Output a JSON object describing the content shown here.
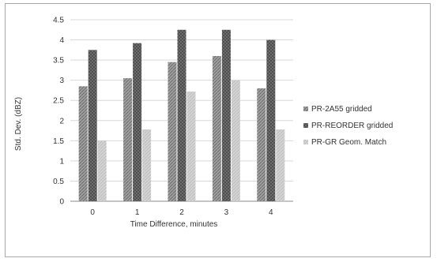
{
  "chart_data": {
    "type": "bar",
    "title": "",
    "xlabel": "Time Difference, minutes",
    "ylabel": "Std. Dev. (dBZ)",
    "categories": [
      "0",
      "1",
      "2",
      "3",
      "4"
    ],
    "ylim": [
      0,
      4.5
    ],
    "yticks": [
      "0",
      "0.5",
      "1",
      "1.5",
      "2",
      "2.5",
      "3",
      "3.5",
      "4",
      "4.5"
    ],
    "grid": true,
    "legend_position": "right",
    "series": [
      {
        "name": "PR-2A55 gridded",
        "values": [
          2.85,
          3.05,
          3.45,
          3.6,
          2.8
        ],
        "color": "#8c8c8c"
      },
      {
        "name": "PR-REORDER gridded",
        "values": [
          3.75,
          3.92,
          4.25,
          4.25,
          4.0
        ],
        "color": "#6e6e6e"
      },
      {
        "name": "PR-GR Geom. Match",
        "values": [
          1.5,
          1.78,
          2.72,
          3.0,
          1.78
        ],
        "color": "#cfcfcf"
      }
    ]
  }
}
